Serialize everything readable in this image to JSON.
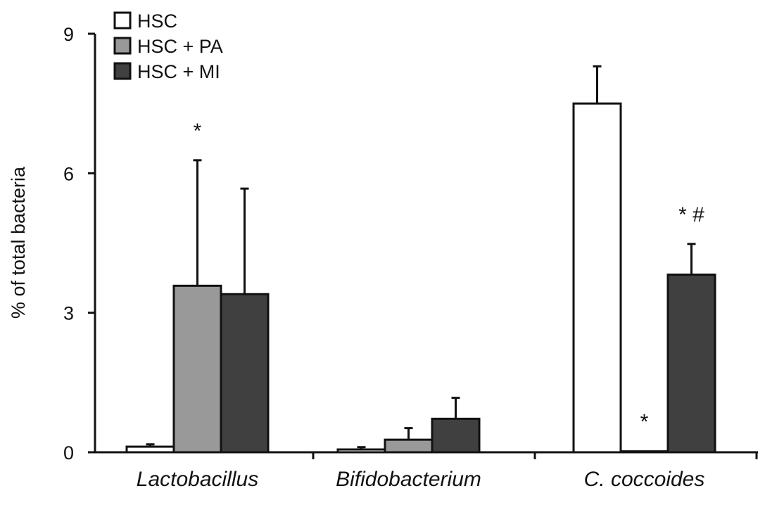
{
  "chart_data": {
    "type": "bar",
    "title": "",
    "xlabel": "",
    "ylabel": "% of total bacteria",
    "ylim": [
      0,
      9
    ],
    "yticks": [
      "0",
      "3",
      "6",
      "9"
    ],
    "categories": [
      "Lactobacillus",
      "Bifidobacterium",
      "C. coccoides"
    ],
    "series": [
      {
        "name": "HSC",
        "color": "#ffffff",
        "values": [
          0.12,
          0.06,
          7.5
        ],
        "errors": [
          0.05,
          0.05,
          0.8
        ],
        "annotations": [
          "",
          "",
          ""
        ]
      },
      {
        "name": "HSC + PA",
        "color": "#999999",
        "values": [
          3.58,
          0.27,
          0.02
        ],
        "errors": [
          2.7,
          0.25,
          0.0
        ],
        "annotations": [
          "*",
          "",
          "*"
        ]
      },
      {
        "name": "HSC + MI",
        "color": "#404040",
        "values": [
          3.4,
          0.72,
          3.82
        ],
        "errors": [
          2.27,
          0.45,
          0.66
        ],
        "annotations": [
          "",
          "",
          "* #"
        ]
      }
    ],
    "legend_position": "top-left",
    "grid": false
  }
}
